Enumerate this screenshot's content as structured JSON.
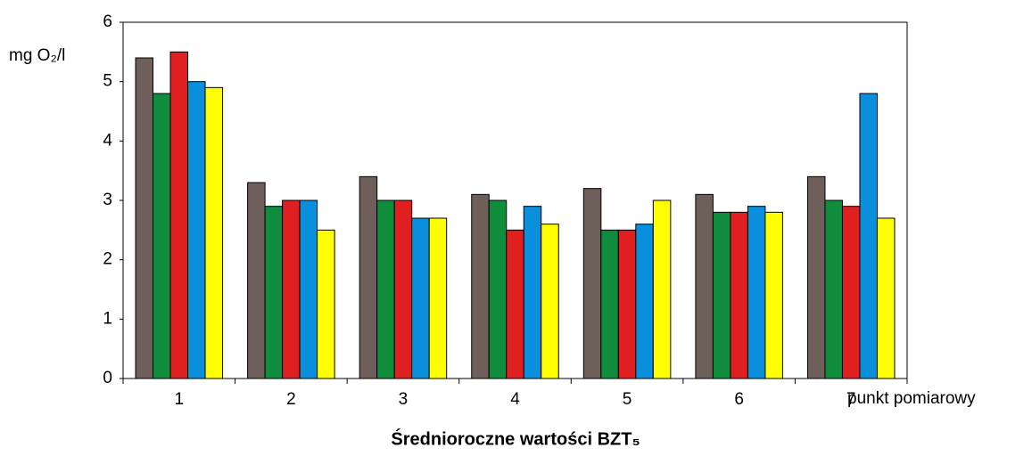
{
  "chart_data": {
    "type": "bar",
    "title": "Średnioroczne wartości BZT₅",
    "y_label": "mg O₂/l",
    "x_label": "punkt pomiarowy",
    "categories": [
      "1",
      "2",
      "3",
      "4",
      "5",
      "6",
      "7"
    ],
    "series": [
      {
        "color": "#6e5f5a",
        "values": [
          5.4,
          3.3,
          3.4,
          3.1,
          3.2,
          3.1,
          3.4
        ]
      },
      {
        "color": "#0f8c3c",
        "values": [
          4.8,
          2.9,
          3.0,
          3.0,
          2.5,
          2.8,
          3.0
        ]
      },
      {
        "color": "#e02020",
        "values": [
          5.5,
          3.0,
          3.0,
          2.5,
          2.5,
          2.8,
          2.9
        ]
      },
      {
        "color": "#0a8fdc",
        "values": [
          5.0,
          3.0,
          2.7,
          2.9,
          2.6,
          2.9,
          4.8
        ]
      },
      {
        "color": "#ffff00",
        "values": [
          4.9,
          2.5,
          2.7,
          2.6,
          3.0,
          2.8,
          2.7
        ]
      }
    ],
    "ylim": [
      0,
      6
    ],
    "yticks": [
      0,
      1,
      2,
      3,
      4,
      5,
      6
    ],
    "grid": false
  }
}
